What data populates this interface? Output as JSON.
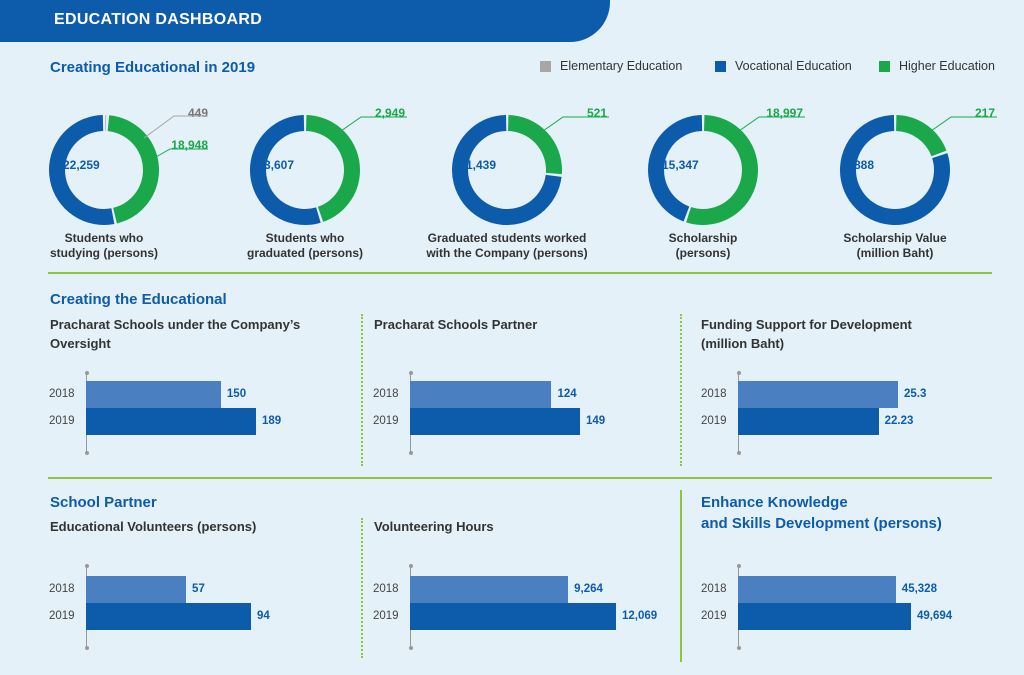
{
  "header": {
    "title": "EDUCATION DASHBOARD"
  },
  "colors": {
    "elementary": "#a6a6a6",
    "vocational": "#0d5cab",
    "higher": "#1aa84a",
    "bar2018": "#4a7fc1",
    "bar2019": "#0d5cab"
  },
  "section1": {
    "title": "Creating Educational in 2019"
  },
  "legend": [
    {
      "label": "Elementary Education",
      "color": "#a6a6a6"
    },
    {
      "label": "Vocational Education",
      "color": "#0d5cab"
    },
    {
      "label": "Higher Education",
      "color": "#1aa84a"
    }
  ],
  "section2": {
    "title": "Creating the Educational"
  },
  "section3": {
    "title": "School Partner",
    "title2_line1": "Enhance Knowledge",
    "title2_line2": "and Skills Development (persons)"
  },
  "chart_data": [
    {
      "type": "pie",
      "title": "Students who studying (persons)",
      "caption_lines": [
        "Students who",
        "studying (persons)"
      ],
      "slices": [
        {
          "label": "Elementary Education",
          "value": 449
        },
        {
          "label": "Higher Education",
          "value": 18948
        },
        {
          "label": "Vocational Education",
          "value": 22259
        }
      ],
      "value_labels": {
        "elementary": "449",
        "higher": "18,948",
        "vocational": "22,259"
      }
    },
    {
      "type": "pie",
      "title": "Students who graduated (persons)",
      "caption_lines": [
        "Students who",
        "graduated (persons)"
      ],
      "slices": [
        {
          "label": "Higher Education",
          "value": 2949
        },
        {
          "label": "Vocational Education",
          "value": 3607
        }
      ],
      "value_labels": {
        "higher": "2,949",
        "vocational": "3,607"
      }
    },
    {
      "type": "pie",
      "title": "Graduated students worked with the Company (persons)",
      "caption_lines": [
        "Graduated students worked",
        "with the Company (persons)"
      ],
      "slices": [
        {
          "label": "Higher Education",
          "value": 521
        },
        {
          "label": "Vocational Education",
          "value": 1439
        }
      ],
      "value_labels": {
        "higher": "521",
        "vocational": "1,439"
      }
    },
    {
      "type": "pie",
      "title": "Scholarship (persons)",
      "caption_lines": [
        "Scholarship",
        "(persons)"
      ],
      "slices": [
        {
          "label": "Higher Education",
          "value": 18997
        },
        {
          "label": "Vocational Education",
          "value": 15347
        }
      ],
      "value_labels": {
        "higher": "18,997",
        "vocational": "15,347"
      }
    },
    {
      "type": "pie",
      "title": "Scholarship Value (million Baht)",
      "caption_lines": [
        "Scholarship Value",
        "(million Baht)"
      ],
      "slices": [
        {
          "label": "Higher Education",
          "value": 217
        },
        {
          "label": "Vocational Education",
          "value": 888
        }
      ],
      "value_labels": {
        "higher": "217",
        "vocational": "888"
      }
    },
    {
      "type": "bar",
      "title_lines": [
        "Pracharat Schools under the Company’s",
        "Oversight"
      ],
      "categories": [
        "2018",
        "2019"
      ],
      "values": [
        150,
        189
      ],
      "value_labels": [
        "150",
        "189"
      ]
    },
    {
      "type": "bar",
      "title_lines": [
        "Pracharat Schools Partner"
      ],
      "categories": [
        "2018",
        "2019"
      ],
      "values": [
        124,
        149
      ],
      "value_labels": [
        "124",
        "149"
      ]
    },
    {
      "type": "bar",
      "title_lines": [
        "Funding Support for Development",
        "(million Baht)"
      ],
      "categories": [
        "2018",
        "2019"
      ],
      "values": [
        25.3,
        22.23
      ],
      "value_labels": [
        "25.3",
        "22.23"
      ]
    },
    {
      "type": "bar",
      "title_lines": [
        "Educational Volunteers (persons)"
      ],
      "categories": [
        "2018",
        "2019"
      ],
      "values": [
        57,
        94
      ],
      "value_labels": [
        "57",
        "94"
      ]
    },
    {
      "type": "bar",
      "title_lines": [
        "Volunteering Hours"
      ],
      "categories": [
        "2018",
        "2019"
      ],
      "values": [
        9264,
        12069
      ],
      "value_labels": [
        "9,264",
        "12,069"
      ]
    },
    {
      "type": "bar",
      "title_lines": [],
      "categories": [
        "2018",
        "2019"
      ],
      "values": [
        45328,
        49694
      ],
      "value_labels": [
        "45,328",
        "49,694"
      ]
    }
  ]
}
